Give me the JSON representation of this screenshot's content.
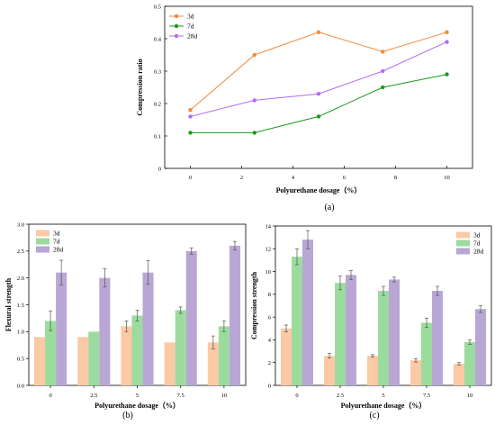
{
  "chart_data": [
    {
      "id": "a",
      "type": "line",
      "caption": "(a)",
      "xlabel": "Polyurethane dosage（%）",
      "ylabel": "Compression ratio",
      "x": [
        0,
        2.5,
        5,
        7.5,
        10
      ],
      "xlim": [
        -1,
        11
      ],
      "ylim": [
        0,
        0.5
      ],
      "xticks": [
        "0",
        "2",
        "4",
        "6",
        "8",
        "10"
      ],
      "yticks": [
        "0",
        "0.1",
        "0.2",
        "0.3",
        "0.4",
        "0.5"
      ],
      "legend_position": "top-left",
      "series": [
        {
          "name": "3d",
          "color": "#f08a3c",
          "values": [
            0.18,
            0.35,
            0.42,
            0.36,
            0.42
          ]
        },
        {
          "name": "7d",
          "color": "#1a9a1a",
          "values": [
            0.11,
            0.11,
            0.16,
            0.25,
            0.29
          ]
        },
        {
          "name": "28d",
          "color": "#b36bf0",
          "values": [
            0.16,
            0.21,
            0.23,
            0.3,
            0.39
          ]
        }
      ]
    },
    {
      "id": "b",
      "type": "bar",
      "caption": "(b)",
      "xlabel": "Polyurethane dosage（%）",
      "ylabel": "Flexural strength",
      "categories": [
        "0",
        "2.5",
        "5",
        "7.5",
        "10"
      ],
      "ylim": [
        0,
        3.0
      ],
      "yticks": [
        "0.0",
        "0.5",
        "1.0",
        "1.5",
        "2.0",
        "2.5",
        "3.0"
      ],
      "legend_position": "top-left",
      "series": [
        {
          "name": "3d",
          "color": "#fbc9a4",
          "values": [
            0.9,
            0.9,
            1.1,
            0.8,
            0.8
          ],
          "errors": [
            0,
            0,
            0.1,
            0,
            0.12
          ]
        },
        {
          "name": "7d",
          "color": "#9bdc9e",
          "values": [
            1.2,
            1.0,
            1.3,
            1.4,
            1.1
          ],
          "errors": [
            0.18,
            0,
            0.1,
            0.06,
            0.1
          ]
        },
        {
          "name": "28d",
          "color": "#b9a6d4",
          "values": [
            2.1,
            2.0,
            2.1,
            2.5,
            2.6
          ],
          "errors": [
            0.23,
            0.17,
            0.22,
            0.06,
            0.08
          ]
        }
      ]
    },
    {
      "id": "c",
      "type": "bar",
      "caption": "(c)",
      "xlabel": "Polyurethane dosage（%）",
      "ylabel": "Compression strength",
      "categories": [
        "0",
        "2.5",
        "5",
        "7.5",
        "10"
      ],
      "ylim": [
        0,
        14
      ],
      "yticks": [
        "0",
        "2",
        "4",
        "6",
        "8",
        "10",
        "12",
        "14"
      ],
      "legend_position": "top-right",
      "series": [
        {
          "name": "3d",
          "color": "#fbc9a4",
          "values": [
            5.0,
            2.6,
            2.6,
            2.2,
            1.9
          ],
          "errors": [
            0.3,
            0.2,
            0.1,
            0.15,
            0.1
          ]
        },
        {
          "name": "7d",
          "color": "#9bdc9e",
          "values": [
            11.3,
            9.0,
            8.3,
            5.5,
            3.8
          ],
          "errors": [
            0.7,
            0.6,
            0.4,
            0.4,
            0.2
          ]
        },
        {
          "name": "28d",
          "color": "#b9a6d4",
          "values": [
            12.8,
            9.7,
            9.3,
            8.3,
            6.7
          ],
          "errors": [
            0.8,
            0.4,
            0.2,
            0.4,
            0.3
          ]
        }
      ]
    }
  ]
}
